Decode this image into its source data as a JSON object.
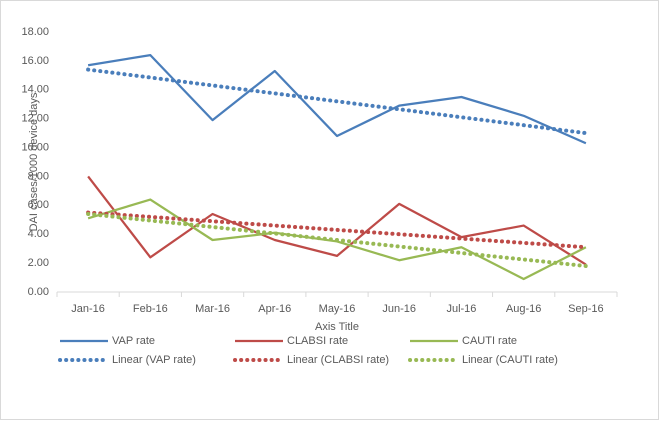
{
  "chart_data": {
    "type": "line",
    "y_label": "DAI cases/1000 device days",
    "x_label": "Axis Title",
    "categories": [
      "Jan-16",
      "Feb-16",
      "Mar-16",
      "Apr-16",
      "May-16",
      "Jun-16",
      "Jul-16",
      "Aug-16",
      "Sep-16"
    ],
    "series": [
      {
        "name": "VAP rate",
        "color": "#4a7ebb",
        "dash": false,
        "values": [
          15.7,
          16.4,
          11.9,
          15.3,
          10.8,
          12.9,
          13.5,
          12.2,
          10.3
        ]
      },
      {
        "name": "CLABSI rate",
        "color": "#be4b48",
        "dash": false,
        "values": [
          8.0,
          2.4,
          5.4,
          3.6,
          2.5,
          6.1,
          3.8,
          4.6,
          1.9
        ]
      },
      {
        "name": "CAUTI rate",
        "color": "#98b954",
        "dash": false,
        "values": [
          5.1,
          6.4,
          3.6,
          4.1,
          3.5,
          2.2,
          3.1,
          0.9,
          3.1
        ]
      },
      {
        "name": "Linear (VAP rate)",
        "color": "#4a7ebb",
        "dash": true,
        "values": [
          15.4,
          14.85,
          14.3,
          13.75,
          13.2,
          12.65,
          12.1,
          11.55,
          11.0
        ]
      },
      {
        "name": "Linear (CLABSI rate)",
        "color": "#be4b48",
        "dash": true,
        "values": [
          5.5,
          5.2,
          4.9,
          4.6,
          4.3,
          4.0,
          3.7,
          3.4,
          3.1
        ]
      },
      {
        "name": "Linear (CAUTI rate)",
        "color": "#98b954",
        "dash": true,
        "values": [
          5.4,
          4.95,
          4.5,
          4.05,
          3.6,
          3.15,
          2.7,
          2.25,
          1.8
        ]
      }
    ],
    "ylim": [
      0,
      18
    ],
    "yticks": [
      {
        "value": 0,
        "label": "0.00"
      },
      {
        "value": 2,
        "label": "2.00"
      },
      {
        "value": 4,
        "label": "4.00"
      },
      {
        "value": 6,
        "label": "6.00"
      },
      {
        "value": 8,
        "label": "8.00"
      },
      {
        "value": 10,
        "label": "10.00"
      },
      {
        "value": 12,
        "label": "12.00"
      },
      {
        "value": 14,
        "label": "14.00"
      },
      {
        "value": 16,
        "label": "16.00"
      },
      {
        "value": 18,
        "label": "18.00"
      }
    ],
    "grid": false
  }
}
